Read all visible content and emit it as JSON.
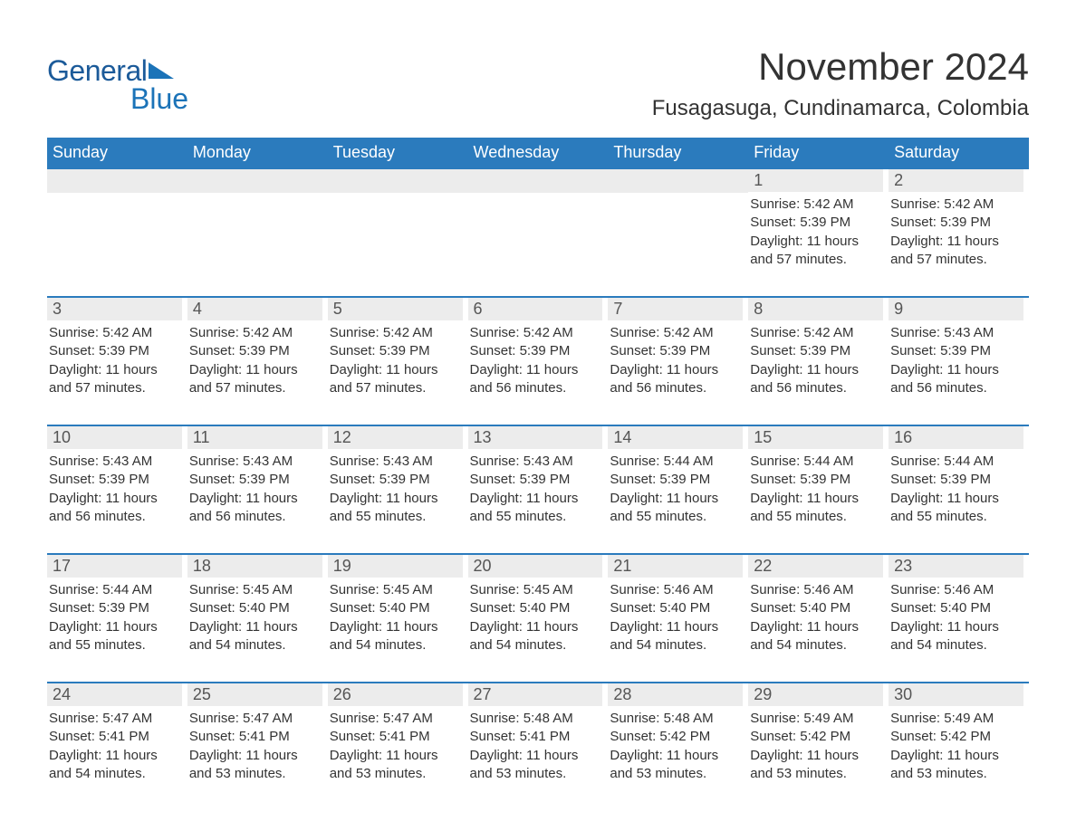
{
  "logo": {
    "general": "General",
    "blue": "Blue"
  },
  "title": "November 2024",
  "location": "Fusagasuga, Cundinamarca, Colombia",
  "colors": {
    "header_bg": "#2b7bbd",
    "header_text": "#ffffff",
    "daynum_bg": "#ececec",
    "border": "#2b7bbd",
    "logo": "#1b73b8"
  },
  "weekdays": [
    "Sunday",
    "Monday",
    "Tuesday",
    "Wednesday",
    "Thursday",
    "Friday",
    "Saturday"
  ],
  "weeks": [
    [
      null,
      null,
      null,
      null,
      null,
      {
        "day": "1",
        "sunrise": "Sunrise: 5:42 AM",
        "sunset": "Sunset: 5:39 PM",
        "daylight": "Daylight: 11 hours and 57 minutes."
      },
      {
        "day": "2",
        "sunrise": "Sunrise: 5:42 AM",
        "sunset": "Sunset: 5:39 PM",
        "daylight": "Daylight: 11 hours and 57 minutes."
      }
    ],
    [
      {
        "day": "3",
        "sunrise": "Sunrise: 5:42 AM",
        "sunset": "Sunset: 5:39 PM",
        "daylight": "Daylight: 11 hours and 57 minutes."
      },
      {
        "day": "4",
        "sunrise": "Sunrise: 5:42 AM",
        "sunset": "Sunset: 5:39 PM",
        "daylight": "Daylight: 11 hours and 57 minutes."
      },
      {
        "day": "5",
        "sunrise": "Sunrise: 5:42 AM",
        "sunset": "Sunset: 5:39 PM",
        "daylight": "Daylight: 11 hours and 57 minutes."
      },
      {
        "day": "6",
        "sunrise": "Sunrise: 5:42 AM",
        "sunset": "Sunset: 5:39 PM",
        "daylight": "Daylight: 11 hours and 56 minutes."
      },
      {
        "day": "7",
        "sunrise": "Sunrise: 5:42 AM",
        "sunset": "Sunset: 5:39 PM",
        "daylight": "Daylight: 11 hours and 56 minutes."
      },
      {
        "day": "8",
        "sunrise": "Sunrise: 5:42 AM",
        "sunset": "Sunset: 5:39 PM",
        "daylight": "Daylight: 11 hours and 56 minutes."
      },
      {
        "day": "9",
        "sunrise": "Sunrise: 5:43 AM",
        "sunset": "Sunset: 5:39 PM",
        "daylight": "Daylight: 11 hours and 56 minutes."
      }
    ],
    [
      {
        "day": "10",
        "sunrise": "Sunrise: 5:43 AM",
        "sunset": "Sunset: 5:39 PM",
        "daylight": "Daylight: 11 hours and 56 minutes."
      },
      {
        "day": "11",
        "sunrise": "Sunrise: 5:43 AM",
        "sunset": "Sunset: 5:39 PM",
        "daylight": "Daylight: 11 hours and 56 minutes."
      },
      {
        "day": "12",
        "sunrise": "Sunrise: 5:43 AM",
        "sunset": "Sunset: 5:39 PM",
        "daylight": "Daylight: 11 hours and 55 minutes."
      },
      {
        "day": "13",
        "sunrise": "Sunrise: 5:43 AM",
        "sunset": "Sunset: 5:39 PM",
        "daylight": "Daylight: 11 hours and 55 minutes."
      },
      {
        "day": "14",
        "sunrise": "Sunrise: 5:44 AM",
        "sunset": "Sunset: 5:39 PM",
        "daylight": "Daylight: 11 hours and 55 minutes."
      },
      {
        "day": "15",
        "sunrise": "Sunrise: 5:44 AM",
        "sunset": "Sunset: 5:39 PM",
        "daylight": "Daylight: 11 hours and 55 minutes."
      },
      {
        "day": "16",
        "sunrise": "Sunrise: 5:44 AM",
        "sunset": "Sunset: 5:39 PM",
        "daylight": "Daylight: 11 hours and 55 minutes."
      }
    ],
    [
      {
        "day": "17",
        "sunrise": "Sunrise: 5:44 AM",
        "sunset": "Sunset: 5:39 PM",
        "daylight": "Daylight: 11 hours and 55 minutes."
      },
      {
        "day": "18",
        "sunrise": "Sunrise: 5:45 AM",
        "sunset": "Sunset: 5:40 PM",
        "daylight": "Daylight: 11 hours and 54 minutes."
      },
      {
        "day": "19",
        "sunrise": "Sunrise: 5:45 AM",
        "sunset": "Sunset: 5:40 PM",
        "daylight": "Daylight: 11 hours and 54 minutes."
      },
      {
        "day": "20",
        "sunrise": "Sunrise: 5:45 AM",
        "sunset": "Sunset: 5:40 PM",
        "daylight": "Daylight: 11 hours and 54 minutes."
      },
      {
        "day": "21",
        "sunrise": "Sunrise: 5:46 AM",
        "sunset": "Sunset: 5:40 PM",
        "daylight": "Daylight: 11 hours and 54 minutes."
      },
      {
        "day": "22",
        "sunrise": "Sunrise: 5:46 AM",
        "sunset": "Sunset: 5:40 PM",
        "daylight": "Daylight: 11 hours and 54 minutes."
      },
      {
        "day": "23",
        "sunrise": "Sunrise: 5:46 AM",
        "sunset": "Sunset: 5:40 PM",
        "daylight": "Daylight: 11 hours and 54 minutes."
      }
    ],
    [
      {
        "day": "24",
        "sunrise": "Sunrise: 5:47 AM",
        "sunset": "Sunset: 5:41 PM",
        "daylight": "Daylight: 11 hours and 54 minutes."
      },
      {
        "day": "25",
        "sunrise": "Sunrise: 5:47 AM",
        "sunset": "Sunset: 5:41 PM",
        "daylight": "Daylight: 11 hours and 53 minutes."
      },
      {
        "day": "26",
        "sunrise": "Sunrise: 5:47 AM",
        "sunset": "Sunset: 5:41 PM",
        "daylight": "Daylight: 11 hours and 53 minutes."
      },
      {
        "day": "27",
        "sunrise": "Sunrise: 5:48 AM",
        "sunset": "Sunset: 5:41 PM",
        "daylight": "Daylight: 11 hours and 53 minutes."
      },
      {
        "day": "28",
        "sunrise": "Sunrise: 5:48 AM",
        "sunset": "Sunset: 5:42 PM",
        "daylight": "Daylight: 11 hours and 53 minutes."
      },
      {
        "day": "29",
        "sunrise": "Sunrise: 5:49 AM",
        "sunset": "Sunset: 5:42 PM",
        "daylight": "Daylight: 11 hours and 53 minutes."
      },
      {
        "day": "30",
        "sunrise": "Sunrise: 5:49 AM",
        "sunset": "Sunset: 5:42 PM",
        "daylight": "Daylight: 11 hours and 53 minutes."
      }
    ]
  ]
}
